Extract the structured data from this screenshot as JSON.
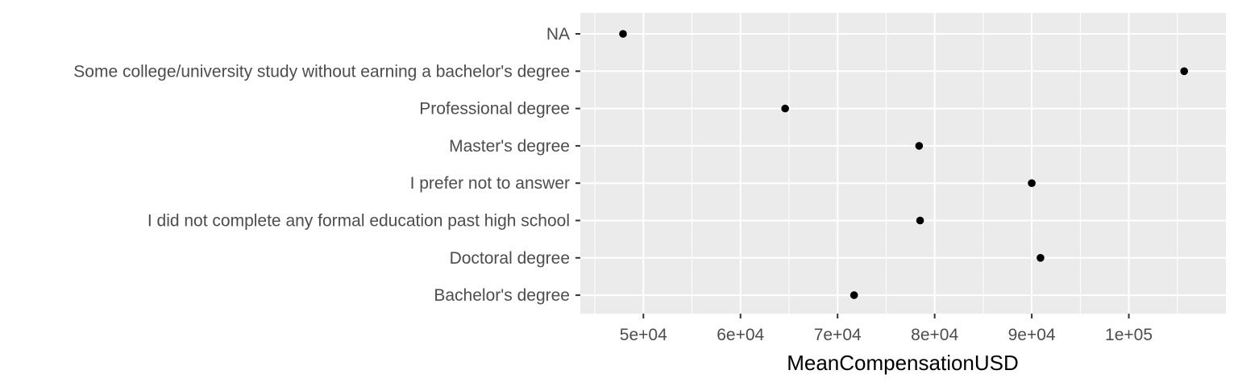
{
  "chart_data": {
    "type": "scatter",
    "title": "",
    "xlabel": "MeanCompensationUSD",
    "ylabel": "",
    "xlim": [
      43500,
      110000
    ],
    "xticks": [
      {
        "value": 50000,
        "label": "5e+04"
      },
      {
        "value": 60000,
        "label": "6e+04"
      },
      {
        "value": 70000,
        "label": "7e+04"
      },
      {
        "value": 80000,
        "label": "8e+04"
      },
      {
        "value": 90000,
        "label": "9e+04"
      },
      {
        "value": 100000,
        "label": "1e+05"
      }
    ],
    "categories": [
      "Bachelor's degree",
      "Doctoral degree",
      "I did not complete any formal education past high school",
      "I prefer not to answer",
      "Master's degree",
      "Professional degree",
      "Some college/university study without earning a bachelor's degree",
      "NA"
    ],
    "values": [
      71700,
      90900,
      78500,
      90000,
      78400,
      64600,
      105700,
      47900
    ],
    "grid": true,
    "panel_background": "#ebebeb",
    "point_color": "#000000"
  }
}
